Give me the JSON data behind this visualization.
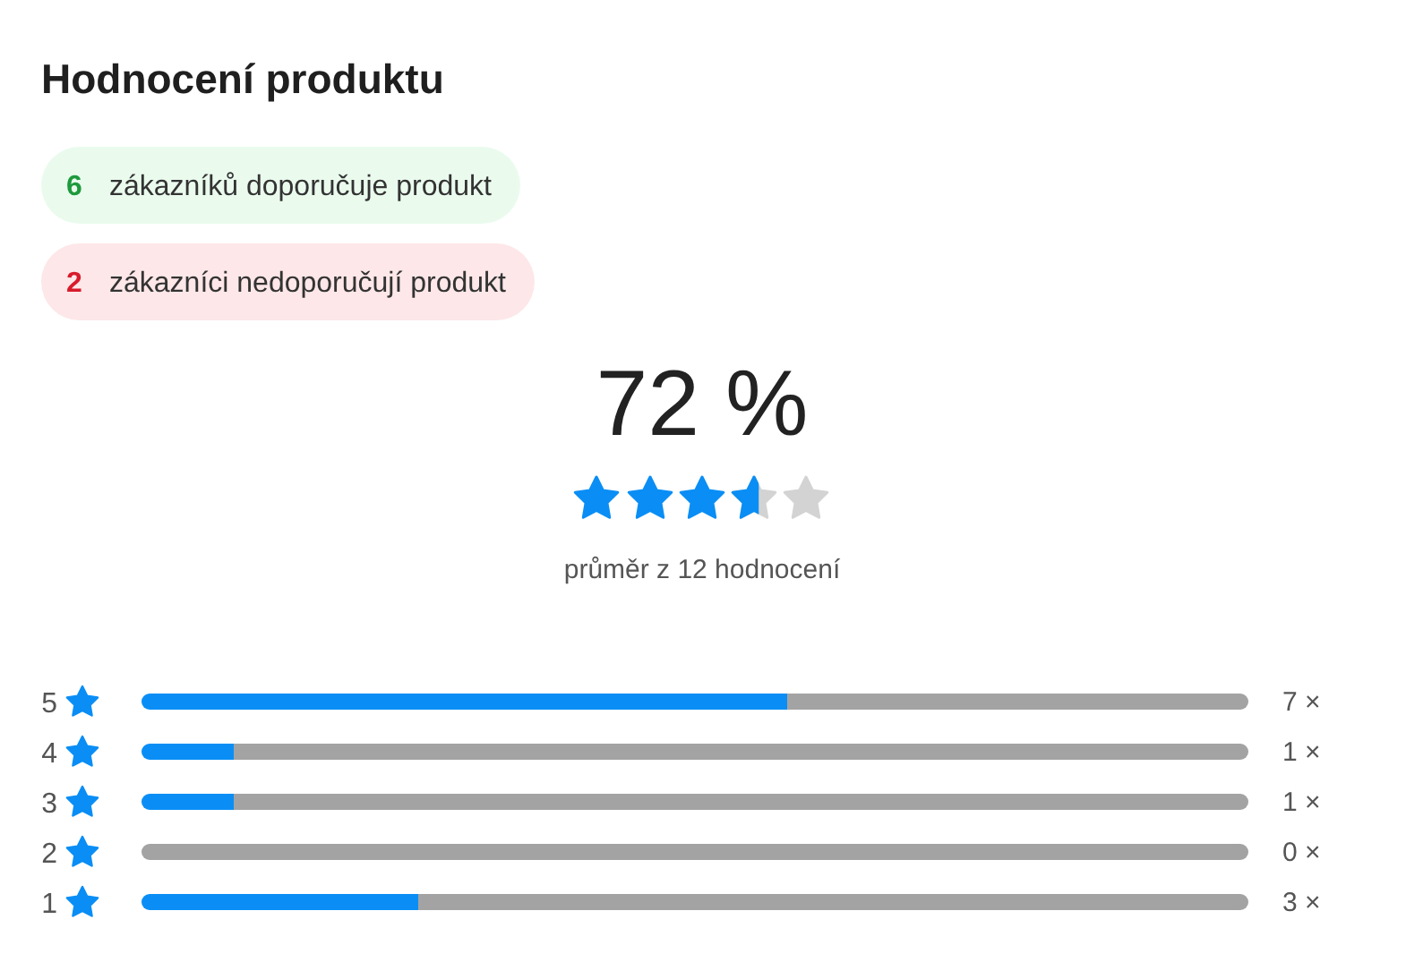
{
  "chart_data": {
    "type": "bar",
    "orientation": "horizontal",
    "stacked": true,
    "title": "Hodnocení produktu",
    "annotations": [
      "6 zákazníků doporučuje produkt",
      "2 zákazníci nedoporučují produkt",
      "72 %",
      "průměr z 12 hodnocení"
    ],
    "categories": [
      "5",
      "4",
      "3",
      "2",
      "1"
    ],
    "series": [
      {
        "color": "#0a8ef5",
        "values": [
          7,
          1,
          1,
          0,
          3
        ],
        "value_labels": [
          "7 ×",
          "1 ×",
          "1 ×",
          "0 ×",
          "3 ×"
        ]
      },
      {
        "color": "#a3a3a3",
        "values": [
          5,
          11,
          11,
          12,
          9
        ]
      }
    ],
    "xlim": [
      0,
      12
    ],
    "tick_labels": "y"
  }
}
